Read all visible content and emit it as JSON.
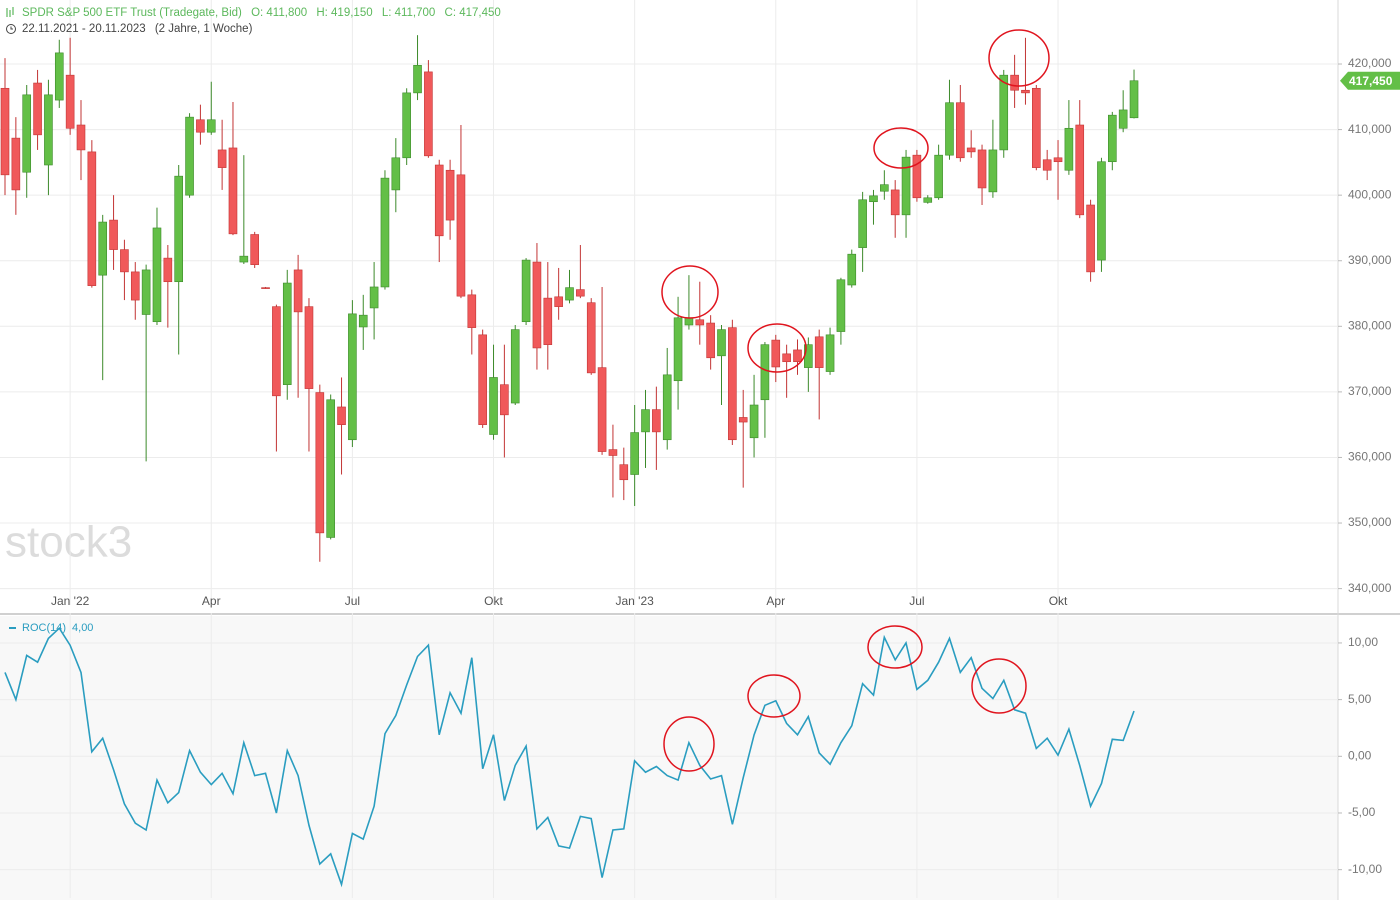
{
  "header": {
    "range": "22.11.2021 - 20.11.2023",
    "duration": "(2 Jahre, 1 Woche)"
  },
  "watermark": "stock3",
  "chart_data": [
    {
      "type": "candlestick",
      "title": "SPDR S&P 500 ETF Trust (Tradegate, Bid)",
      "ohlc_labels": [
        "O: 411,800",
        "H: 419,150",
        "L: 411,700",
        "C: 417,450"
      ],
      "last_label": "417,450",
      "up_color": "#63bf47",
      "down_color": "#f0595a",
      "last_color": "#63bf47",
      "categories": [
        null,
        null,
        null,
        null,
        null,
        null,
        "Jan '22",
        null,
        null,
        null,
        null,
        null,
        null,
        null,
        null,
        null,
        null,
        null,
        null,
        "Apr",
        null,
        null,
        null,
        null,
        null,
        null,
        null,
        null,
        null,
        null,
        null,
        null,
        "Jul",
        null,
        null,
        null,
        null,
        null,
        null,
        null,
        null,
        null,
        null,
        null,
        null,
        "Okt",
        null,
        null,
        null,
        null,
        null,
        null,
        null,
        null,
        null,
        null,
        null,
        null,
        "Jan '23",
        null,
        null,
        null,
        null,
        null,
        null,
        null,
        null,
        null,
        null,
        null,
        null,
        "Apr",
        null,
        null,
        null,
        null,
        null,
        null,
        null,
        null,
        null,
        null,
        null,
        null,
        "Jul",
        null,
        null,
        null,
        null,
        null,
        null,
        null,
        null,
        null,
        null,
        null,
        null,
        "Okt",
        null,
        null,
        null,
        null,
        null,
        null,
        null
      ],
      "open": [
        416300,
        408700,
        403500,
        417100,
        404600,
        414500,
        418300,
        410700,
        406600,
        387800,
        396200,
        391700,
        388300,
        381800,
        380700,
        390400,
        386800,
        400000,
        411500,
        409600,
        406900,
        407200,
        389800,
        394000,
        385900,
        383000,
        371100,
        388600,
        383000,
        369900,
        347800,
        367700,
        362700,
        379900,
        382800,
        386000,
        400800,
        405700,
        415600,
        418800,
        404600,
        403800,
        403100,
        384800,
        378700,
        363500,
        371100,
        368300,
        380700,
        389800,
        384300,
        384500,
        384000,
        385600,
        383600,
        373700,
        361200,
        358900,
        357400,
        363900,
        367300,
        362700,
        371700,
        380200,
        381000,
        380500,
        375500,
        379800,
        366100,
        363000,
        368800,
        377900,
        375800,
        376400,
        373700,
        378400,
        373100,
        379200,
        386300,
        392000,
        399000,
        400600,
        400800,
        397000,
        406100,
        398900,
        399600,
        406100,
        414100,
        407200,
        406900,
        400500,
        406900,
        418300,
        416000,
        416300,
        405400,
        405700,
        403800,
        410700,
        398500,
        390100,
        405100,
        410200,
        411800
      ],
      "high": [
        420900,
        411900,
        416800,
        419100,
        417600,
        423700,
        424000,
        414500,
        408400,
        397000,
        400000,
        393200,
        389800,
        389400,
        398100,
        392400,
        404600,
        412500,
        413800,
        417300,
        411500,
        414200,
        406100,
        394400,
        386000,
        383300,
        388600,
        390900,
        384300,
        371100,
        369600,
        372200,
        384000,
        384800,
        389800,
        403800,
        408700,
        416300,
        424400,
        420600,
        405400,
        405400,
        410700,
        385600,
        379500,
        377200,
        377200,
        380200,
        390400,
        392700,
        389800,
        388900,
        388600,
        392400,
        384300,
        386000,
        365000,
        361500,
        368000,
        370300,
        370800,
        376700,
        384500,
        387800,
        386800,
        381700,
        380200,
        381000,
        370300,
        372600,
        377600,
        378700,
        377200,
        378000,
        378300,
        379500,
        379800,
        387400,
        391700,
        400500,
        400800,
        403800,
        402300,
        406900,
        406900,
        400000,
        407700,
        417600,
        416800,
        409900,
        407700,
        411500,
        419100,
        421400,
        424000,
        416800,
        406900,
        408400,
        414500,
        414500,
        399300,
        405700,
        412700,
        416000,
        419150
      ],
      "low": [
        400000,
        397000,
        399600,
        406900,
        400000,
        413300,
        409200,
        402300,
        385900,
        371800,
        388600,
        384000,
        381000,
        359400,
        380200,
        379800,
        375700,
        399600,
        407700,
        409200,
        400800,
        393900,
        389500,
        388900,
        385700,
        360900,
        368800,
        369100,
        360900,
        344100,
        347500,
        357400,
        361600,
        376400,
        378000,
        385600,
        397400,
        404600,
        414500,
        405700,
        389800,
        393200,
        384300,
        375700,
        364500,
        362700,
        360000,
        368000,
        380200,
        373400,
        373400,
        381000,
        383500,
        384300,
        372600,
        360400,
        353900,
        353500,
        352600,
        358400,
        358100,
        361200,
        367300,
        379500,
        377200,
        373400,
        368000,
        361900,
        355400,
        360000,
        363000,
        371500,
        369100,
        372600,
        370000,
        365800,
        372600,
        377200,
        385900,
        388300,
        395500,
        399300,
        393500,
        393500,
        399000,
        398700,
        399300,
        405400,
        405100,
        405700,
        398500,
        399600,
        405700,
        413300,
        413800,
        403800,
        402300,
        399300,
        403100,
        396500,
        386800,
        388300,
        403800,
        409600,
        411700
      ],
      "close": [
        403100,
        400800,
        415300,
        409200,
        415300,
        421700,
        410200,
        406900,
        386200,
        395900,
        391700,
        388300,
        384000,
        388600,
        395000,
        386800,
        402900,
        411900,
        409600,
        411500,
        404200,
        394100,
        390700,
        389400,
        385800,
        369400,
        386600,
        382200,
        370500,
        348500,
        368800,
        365000,
        381900,
        381700,
        386000,
        402600,
        405700,
        415600,
        419800,
        406000,
        393800,
        396200,
        384600,
        379800,
        365000,
        372200,
        366500,
        379500,
        390100,
        376700,
        377200,
        383000,
        385900,
        384600,
        372900,
        360900,
        360300,
        356600,
        363800,
        367300,
        363900,
        372600,
        381300,
        381300,
        380200,
        375200,
        379500,
        362700,
        365400,
        368000,
        377200,
        373800,
        374600,
        374600,
        377200,
        373700,
        378700,
        387100,
        391000,
        399300,
        399900,
        401600,
        397000,
        405800,
        399600,
        399600,
        406100,
        414100,
        405700,
        406600,
        401100,
        406900,
        418300,
        416000,
        415600,
        404200,
        403800,
        405100,
        410200,
        397000,
        388300,
        405100,
        412200,
        413000,
        417450
      ],
      "ylim": [
        337500,
        429000
      ],
      "yticks": [
        {
          "value": 340000,
          "label": "340,000"
        },
        {
          "value": 350000,
          "label": "350,000"
        },
        {
          "value": 360000,
          "label": "360,000"
        },
        {
          "value": 370000,
          "label": "370,000"
        },
        {
          "value": 380000,
          "label": "380,000"
        },
        {
          "value": 390000,
          "label": "390,000"
        },
        {
          "value": 400000,
          "label": "400,000"
        },
        {
          "value": 410000,
          "label": "410,000"
        },
        {
          "value": 420000,
          "label": "420,000"
        }
      ],
      "grid": true
    },
    {
      "type": "line",
      "series": [
        {
          "name": "ROC(14)",
          "color": "#2a9dc0",
          "last_label": "4,00",
          "values": [
            7.4,
            5.0,
            8.9,
            8.3,
            10.4,
            11.3,
            9.8,
            7.4,
            0.4,
            1.6,
            -1.2,
            -4.2,
            -5.9,
            -6.5,
            -2.1,
            -4.1,
            -3.2,
            0.5,
            -1.4,
            -2.5,
            -1.5,
            -3.3,
            1.2,
            -1.7,
            -1.5,
            -5.0,
            0.5,
            -1.7,
            -6.1,
            -9.5,
            -8.6,
            -11.3,
            -6.8,
            -7.3,
            -4.4,
            2.0,
            3.6,
            6.3,
            8.8,
            9.8,
            1.9,
            5.6,
            3.8,
            8.7,
            -1.1,
            1.9,
            -3.9,
            -0.8,
            0.9,
            -6.4,
            -5.4,
            -7.9,
            -8.1,
            -5.3,
            -5.5,
            -10.7,
            -6.5,
            -6.4,
            -0.4,
            -1.4,
            -0.9,
            -1.7,
            -2.1,
            1.2,
            -0.8,
            -2.0,
            -1.7,
            -6.0,
            -1.9,
            1.9,
            4.5,
            4.9,
            2.9,
            1.9,
            3.5,
            0.3,
            -0.7,
            1.2,
            2.7,
            6.4,
            5.4,
            10.5,
            8.5,
            10.0,
            5.9,
            6.7,
            8.3,
            10.4,
            7.4,
            8.7,
            6.0,
            5.1,
            6.7,
            4.1,
            3.8,
            0.7,
            1.6,
            0.1,
            2.4,
            -0.8,
            -4.4,
            -2.4,
            1.5,
            1.4,
            4.0
          ]
        }
      ],
      "ylim": [
        -12.5,
        12.2
      ],
      "yticks": [
        {
          "value": 10,
          "label": "10,00"
        },
        {
          "value": 5,
          "label": "5,00"
        },
        {
          "value": 0,
          "label": "0,00"
        },
        {
          "value": -5,
          "label": "-5,00"
        },
        {
          "value": -10,
          "label": "-10,00"
        }
      ],
      "grid": true
    }
  ]
}
